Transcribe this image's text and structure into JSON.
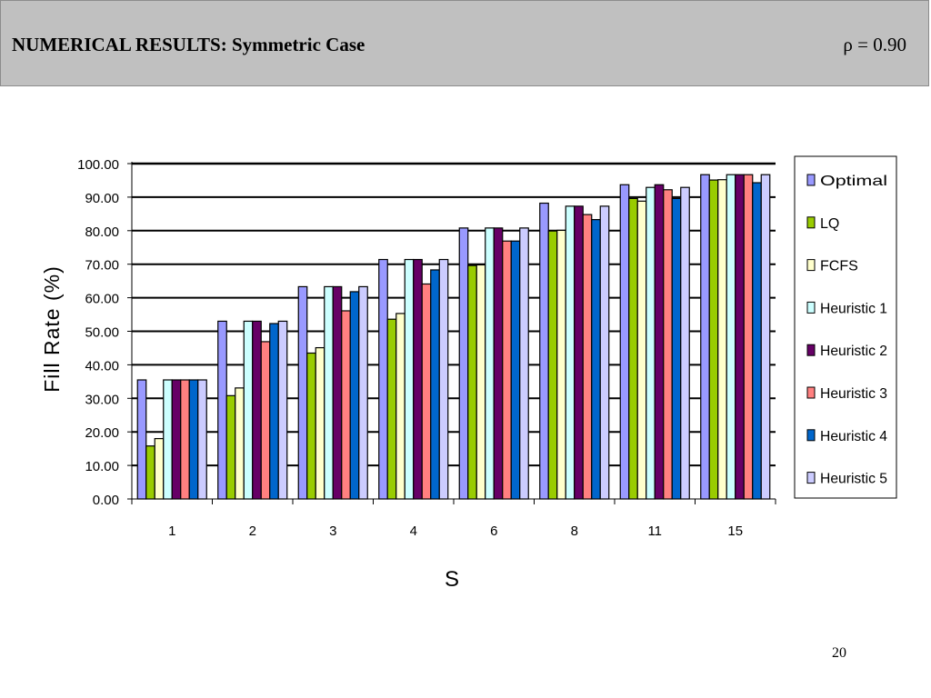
{
  "slide": {
    "title": "NUMERICAL RESULTS: Symmetric Case",
    "parameter": "ρ = 0.90",
    "page_number": "20"
  },
  "chart_data": {
    "type": "bar",
    "title": "",
    "xlabel": "S",
    "ylabel": "Fill Rate (%)",
    "ylim": [
      0,
      100
    ],
    "yticks": [
      "0.00",
      "10.00",
      "20.00",
      "30.00",
      "40.00",
      "50.00",
      "60.00",
      "70.00",
      "80.00",
      "90.00",
      "100.00"
    ],
    "categories": [
      "1",
      "2",
      "3",
      "4",
      "6",
      "8",
      "11",
      "15"
    ],
    "grid": true,
    "legend_position": "right",
    "series": [
      {
        "name": "Optimal",
        "color": "#9999ff",
        "values": [
          35.5,
          53.0,
          63.3,
          71.4,
          80.8,
          88.2,
          93.7,
          96.7
        ]
      },
      {
        "name": "LQ",
        "color": "#99cc00",
        "values": [
          15.8,
          30.8,
          43.5,
          53.6,
          69.6,
          79.9,
          89.6,
          95.1
        ]
      },
      {
        "name": "FCFS",
        "color": "#ffffcc",
        "values": [
          18.0,
          33.1,
          45.1,
          55.3,
          69.8,
          80.1,
          88.8,
          95.2
        ]
      },
      {
        "name": "Heuristic 1",
        "color": "#ccffff",
        "values": [
          35.5,
          53.0,
          63.3,
          71.4,
          80.8,
          87.3,
          92.9,
          96.7
        ]
      },
      {
        "name": "Heuristic 2",
        "color": "#660066",
        "values": [
          35.5,
          53.0,
          63.3,
          71.4,
          80.8,
          87.3,
          93.7,
          96.7
        ]
      },
      {
        "name": "Heuristic 3",
        "color": "#ff8080",
        "values": [
          35.5,
          46.9,
          56.1,
          64.1,
          76.9,
          84.8,
          92.2,
          96.7
        ]
      },
      {
        "name": "Heuristic 4",
        "color": "#0066cc",
        "values": [
          35.5,
          52.3,
          61.8,
          68.3,
          76.9,
          83.3,
          89.6,
          94.3
        ]
      },
      {
        "name": "Heuristic 5",
        "color": "#ccccff",
        "values": [
          35.5,
          53.0,
          63.3,
          71.4,
          80.8,
          87.3,
          92.9,
          96.7
        ]
      }
    ]
  }
}
